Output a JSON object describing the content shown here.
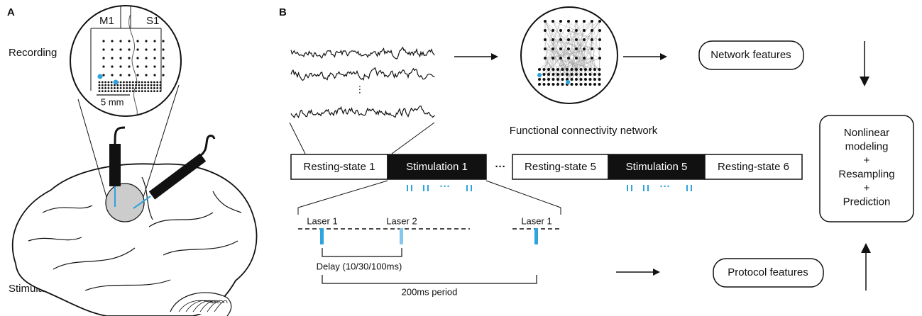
{
  "panel_a": {
    "label": "A",
    "recording_label": "Recording",
    "regions": [
      "M1",
      "S1"
    ],
    "scale_bar": "5 mm",
    "stimulation_label": "Stimulation"
  },
  "panel_b": {
    "label": "B",
    "signal_ellipsis": "⋮",
    "network_caption": "Functional connectivity network",
    "network_features": "Network features",
    "protocol_features": "Protocol features",
    "model_box": [
      "Nonlinear",
      "modeling",
      "+",
      "Resampling",
      "+",
      "Prediction"
    ],
    "timeline_1": [
      "Resting-state 1",
      "Stimulation 1"
    ],
    "timeline_gap": "···",
    "timeline_2": [
      "Resting-state 5",
      "Stimulation 5",
      "Resting-state 6"
    ],
    "pulse_ellipses": [
      "···",
      "···"
    ],
    "lasers": [
      "Laser 1",
      "Laser 2",
      "Laser 1"
    ],
    "delay_label": "Delay (10/30/100ms)",
    "period_label": "200ms period"
  }
}
